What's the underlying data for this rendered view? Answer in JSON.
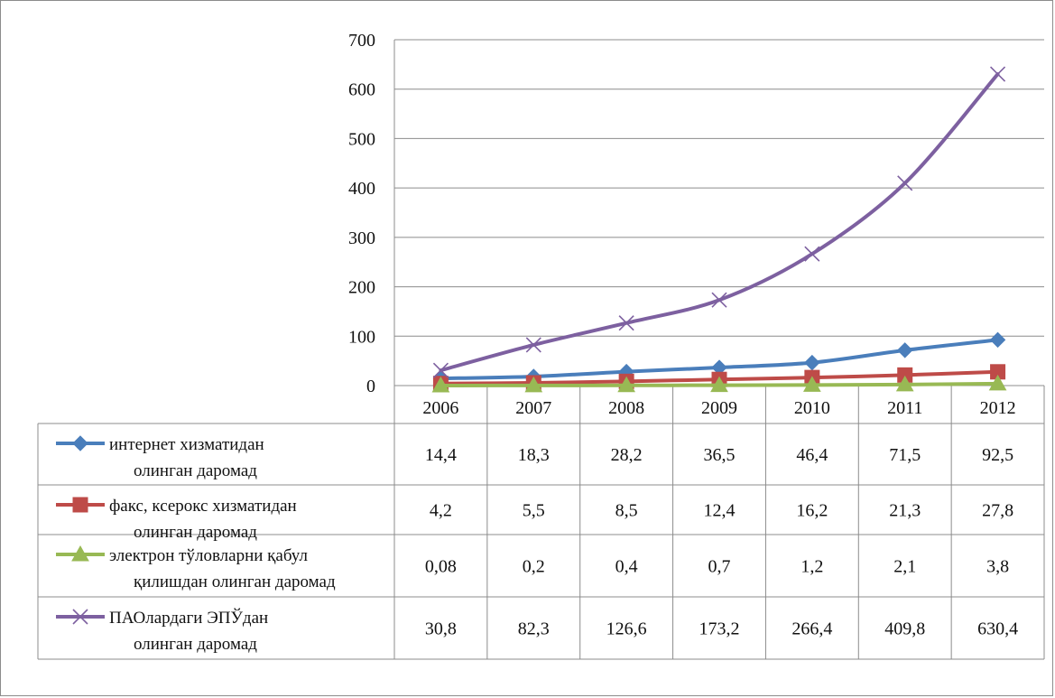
{
  "chart_data": {
    "type": "line",
    "title": "",
    "xlabel": "",
    "ylabel": "",
    "categories": [
      "2006",
      "2007",
      "2008",
      "2009",
      "2010",
      "2011",
      "2012"
    ],
    "ylim": [
      0,
      700
    ],
    "yticks": [
      "0",
      "100",
      "200",
      "300",
      "400",
      "500",
      "600",
      "700"
    ],
    "grid": true,
    "legend": "data-table-left",
    "series": [
      {
        "name_lines": [
          "интернет хизматидан",
          "олинган даромад"
        ],
        "color": "#4a7ebb",
        "marker": "diamond",
        "values": [
          14.4,
          18.3,
          28.2,
          36.5,
          46.4,
          71.5,
          92.5
        ],
        "labels": [
          "14,4",
          "18,3",
          "28,2",
          "36,5",
          "46,4",
          "71,5",
          "92,5"
        ]
      },
      {
        "name_lines": [
          "факс, ксерокс хизматидан",
          "олинган даромад"
        ],
        "color": "#be4b48",
        "marker": "square",
        "values": [
          4.2,
          5.5,
          8.5,
          12.4,
          16.2,
          21.3,
          27.8
        ],
        "labels": [
          "4,2",
          "5,5",
          "8,5",
          "12,4",
          "16,2",
          "21,3",
          "27,8"
        ]
      },
      {
        "name_lines": [
          "электрон тўловларни қабул",
          "қилишдан олинган даромад"
        ],
        "color": "#98b954",
        "marker": "triangle",
        "values": [
          0.08,
          0.2,
          0.4,
          0.7,
          1.2,
          2.1,
          3.8
        ],
        "labels": [
          "0,08",
          "0,2",
          "0,4",
          "0,7",
          "1,2",
          "2,1",
          "3,8"
        ]
      },
      {
        "name_lines": [
          "ПАОлардаги ЭПЎдан",
          "олинган даромад"
        ],
        "color": "#7d60a0",
        "marker": "x",
        "values": [
          30.8,
          82.3,
          126.6,
          173.2,
          266.4,
          409.8,
          630.4
        ],
        "labels": [
          "30,8",
          "82,3",
          "126,6",
          "173,2",
          "266,4",
          "409,8",
          "630,4"
        ]
      }
    ]
  }
}
